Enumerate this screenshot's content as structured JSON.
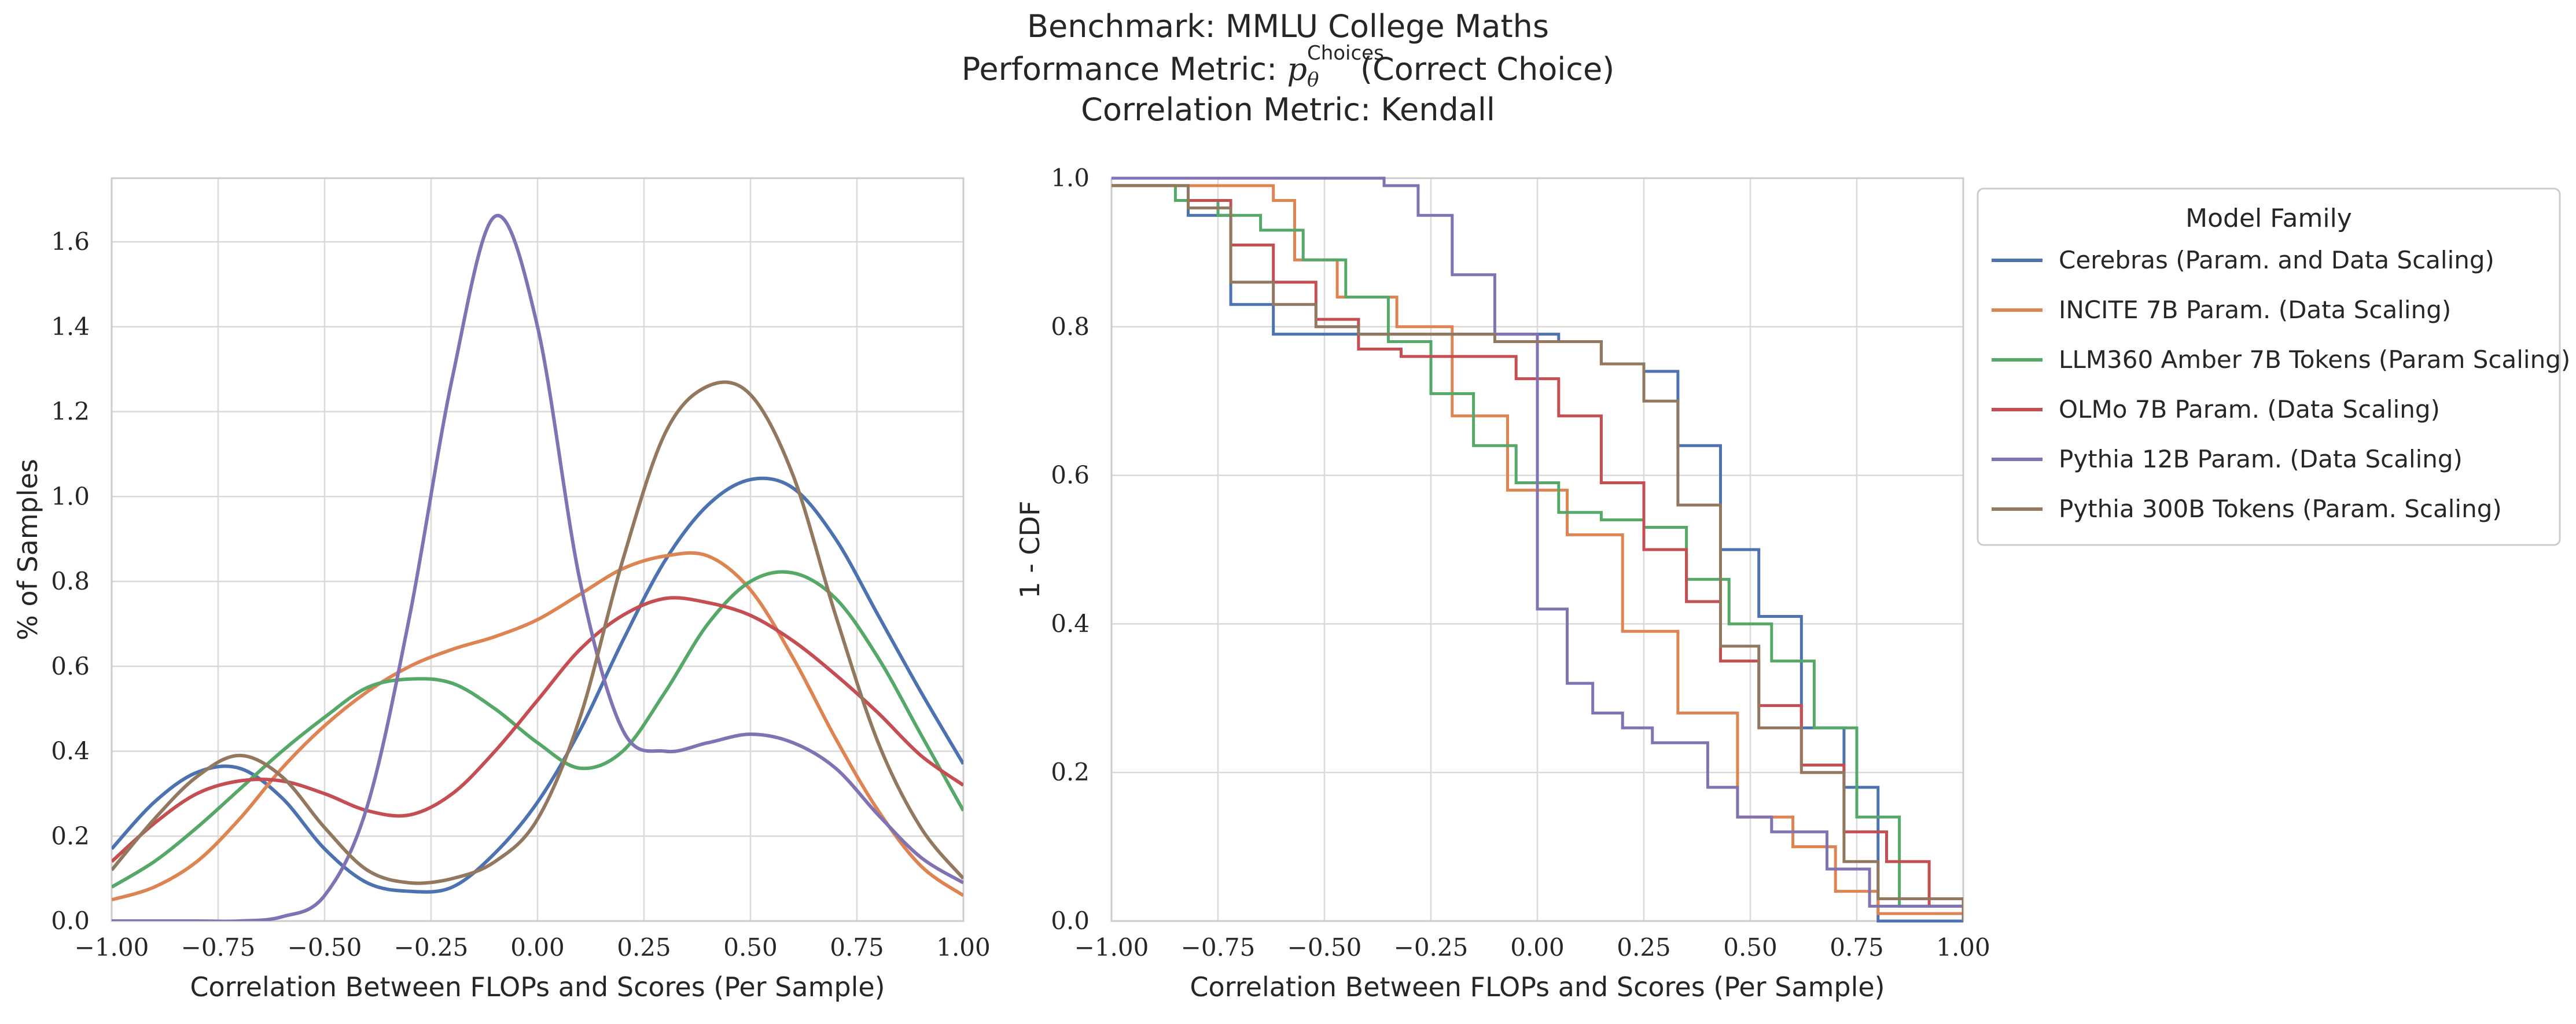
{
  "figure": {
    "title_lines": [
      "Benchmark: MMLU College Maths",
      "Performance Metric: p_θ^Choices(Correct Choice)",
      "Correlation Metric: Kendall"
    ],
    "title_main_1": "Benchmark: MMLU College Maths",
    "title_main_2_prefix": "Performance Metric: ",
    "title_main_2_p": "p",
    "title_main_2_sub": "θ",
    "title_main_2_sup": "Choices",
    "title_main_2_suffix": "(Correct Choice)",
    "title_main_3": "Correlation Metric: Kendall"
  },
  "legend": {
    "title": "Model Family",
    "placement": "right, outside plot, top"
  },
  "colors": {
    "Cerebras": "#4c72b0",
    "INCITE": "#dd8452",
    "LLM360": "#55a868",
    "OLMo": "#c44e52",
    "Pythia12B": "#8172b3",
    "Pythia300B": "#937860",
    "grid": "#d9d9d9",
    "spine": "#cccccc"
  },
  "chart_data": [
    {
      "type": "line",
      "subtype": "kde",
      "xlabel": "Correlation Between FLOPs and Scores (Per Sample)",
      "ylabel": "% of Samples",
      "xlim": [
        -1.0,
        1.0
      ],
      "ylim": [
        0.0,
        1.75
      ],
      "xticks": [
        "−1.00",
        "−0.75",
        "−0.50",
        "−0.25",
        "0.00",
        "0.25",
        "0.50",
        "0.75",
        "1.00"
      ],
      "yticks": [
        "0.0",
        "0.2",
        "0.4",
        "0.6",
        "0.8",
        "1.0",
        "1.2",
        "1.4",
        "1.6"
      ],
      "grid": true,
      "x": [
        -1.0,
        -0.9,
        -0.8,
        -0.7,
        -0.6,
        -0.5,
        -0.4,
        -0.3,
        -0.2,
        -0.1,
        0.0,
        0.1,
        0.2,
        0.3,
        0.4,
        0.5,
        0.6,
        0.7,
        0.8,
        0.9,
        1.0
      ],
      "series": [
        {
          "name": "Cerebras (Param. and Data Scaling)",
          "key": "Cerebras",
          "values": [
            0.17,
            0.28,
            0.35,
            0.36,
            0.29,
            0.17,
            0.09,
            0.07,
            0.08,
            0.16,
            0.28,
            0.45,
            0.66,
            0.85,
            0.98,
            1.04,
            1.02,
            0.9,
            0.72,
            0.54,
            0.37
          ]
        },
        {
          "name": "INCITE 7B Param. (Data Scaling)",
          "key": "INCITE",
          "values": [
            0.05,
            0.08,
            0.14,
            0.24,
            0.36,
            0.46,
            0.54,
            0.6,
            0.64,
            0.67,
            0.71,
            0.77,
            0.83,
            0.86,
            0.86,
            0.78,
            0.62,
            0.43,
            0.26,
            0.13,
            0.06
          ]
        },
        {
          "name": "LLM360 Amber 7B Tokens (Param Scaling)",
          "key": "LLM360",
          "values": [
            0.08,
            0.14,
            0.22,
            0.31,
            0.4,
            0.48,
            0.55,
            0.57,
            0.56,
            0.5,
            0.42,
            0.36,
            0.4,
            0.54,
            0.7,
            0.8,
            0.82,
            0.76,
            0.62,
            0.44,
            0.26
          ]
        },
        {
          "name": "OLMo 7B Param. (Data Scaling)",
          "key": "OLMo",
          "values": [
            0.14,
            0.23,
            0.3,
            0.33,
            0.33,
            0.3,
            0.26,
            0.25,
            0.3,
            0.4,
            0.52,
            0.64,
            0.72,
            0.76,
            0.75,
            0.72,
            0.66,
            0.58,
            0.49,
            0.39,
            0.32
          ]
        },
        {
          "name": "Pythia 12B Param. (Data Scaling)",
          "key": "Pythia12B",
          "values": [
            0.0,
            0.0,
            0.0,
            0.0,
            0.01,
            0.06,
            0.27,
            0.72,
            1.28,
            1.66,
            1.4,
            0.8,
            0.45,
            0.4,
            0.42,
            0.44,
            0.42,
            0.36,
            0.25,
            0.15,
            0.09
          ]
        },
        {
          "name": "Pythia 300B Tokens (Param. Scaling)",
          "key": "Pythia300B",
          "values": [
            0.12,
            0.24,
            0.34,
            0.39,
            0.34,
            0.22,
            0.12,
            0.09,
            0.1,
            0.14,
            0.24,
            0.48,
            0.85,
            1.15,
            1.26,
            1.24,
            1.05,
            0.72,
            0.42,
            0.22,
            0.1
          ]
        }
      ]
    },
    {
      "type": "line",
      "subtype": "step",
      "xlabel": "Correlation Between FLOPs and Scores (Per Sample)",
      "ylabel": "1 - CDF",
      "xlim": [
        -1.0,
        1.0
      ],
      "ylim": [
        0.0,
        1.0
      ],
      "xticks": [
        "−1.00",
        "−0.75",
        "−0.50",
        "−0.25",
        "0.00",
        "0.25",
        "0.50",
        "0.75",
        "1.00"
      ],
      "yticks": [
        "0.0",
        "0.2",
        "0.4",
        "0.6",
        "0.8",
        "1.0"
      ],
      "grid": true,
      "series": [
        {
          "name": "Cerebras (Param. and Data Scaling)",
          "key": "Cerebras",
          "x": [
            -1.0,
            -0.82,
            -0.72,
            -0.62,
            0.05,
            0.15,
            0.25,
            0.33,
            0.43,
            0.52,
            0.62,
            0.72,
            0.8,
            1.0
          ],
          "y": [
            0.99,
            0.95,
            0.83,
            0.79,
            0.78,
            0.75,
            0.74,
            0.64,
            0.5,
            0.41,
            0.26,
            0.18,
            0.0,
            0.0
          ]
        },
        {
          "name": "INCITE 7B Param. (Data Scaling)",
          "key": "INCITE",
          "x": [
            -1.0,
            -0.62,
            -0.57,
            -0.47,
            -0.33,
            -0.2,
            -0.07,
            0.07,
            0.2,
            0.33,
            0.47,
            0.6,
            0.7,
            0.8,
            1.0
          ],
          "y": [
            0.99,
            0.97,
            0.89,
            0.84,
            0.8,
            0.68,
            0.58,
            0.52,
            0.39,
            0.28,
            0.14,
            0.1,
            0.04,
            0.01,
            0.01
          ]
        },
        {
          "name": "LLM360 Amber 7B Tokens (Param Scaling)",
          "key": "LLM360",
          "x": [
            -1.0,
            -0.85,
            -0.75,
            -0.65,
            -0.55,
            -0.45,
            -0.35,
            -0.25,
            -0.15,
            -0.05,
            0.05,
            0.15,
            0.25,
            0.35,
            0.45,
            0.55,
            0.65,
            0.75,
            0.85,
            1.0
          ],
          "y": [
            0.99,
            0.97,
            0.95,
            0.93,
            0.89,
            0.84,
            0.78,
            0.71,
            0.64,
            0.59,
            0.55,
            0.54,
            0.53,
            0.46,
            0.4,
            0.35,
            0.26,
            0.14,
            0.02,
            0.01
          ]
        },
        {
          "name": "OLMo 7B Param. (Data Scaling)",
          "key": "OLMo",
          "x": [
            -1.0,
            -0.82,
            -0.72,
            -0.62,
            -0.52,
            -0.42,
            -0.32,
            -0.1,
            -0.05,
            0.05,
            0.15,
            0.25,
            0.35,
            0.43,
            0.52,
            0.62,
            0.72,
            0.82,
            0.92,
            1.0
          ],
          "y": [
            0.99,
            0.97,
            0.91,
            0.86,
            0.81,
            0.77,
            0.76,
            0.76,
            0.73,
            0.68,
            0.59,
            0.5,
            0.43,
            0.35,
            0.29,
            0.21,
            0.12,
            0.08,
            0.02,
            0.02
          ]
        },
        {
          "name": "Pythia 12B Param. (Data Scaling)",
          "key": "Pythia12B",
          "x": [
            -1.0,
            -0.36,
            -0.28,
            -0.2,
            -0.1,
            0.0,
            0.07,
            0.13,
            0.2,
            0.27,
            0.33,
            0.4,
            0.47,
            0.55,
            0.68,
            0.78,
            1.0
          ],
          "y": [
            1.0,
            0.99,
            0.95,
            0.87,
            0.79,
            0.42,
            0.32,
            0.28,
            0.26,
            0.24,
            0.24,
            0.18,
            0.14,
            0.12,
            0.07,
            0.02,
            0.0
          ]
        },
        {
          "name": "Pythia 300B Tokens (Param. Scaling)",
          "key": "Pythia300B",
          "x": [
            -1.0,
            -0.82,
            -0.72,
            -0.62,
            -0.52,
            -0.42,
            -0.1,
            0.05,
            0.15,
            0.25,
            0.33,
            0.43,
            0.52,
            0.62,
            0.72,
            0.8,
            1.0
          ],
          "y": [
            0.99,
            0.96,
            0.86,
            0.83,
            0.8,
            0.79,
            0.78,
            0.78,
            0.75,
            0.7,
            0.56,
            0.37,
            0.26,
            0.2,
            0.08,
            0.03,
            0.0
          ]
        }
      ]
    }
  ]
}
